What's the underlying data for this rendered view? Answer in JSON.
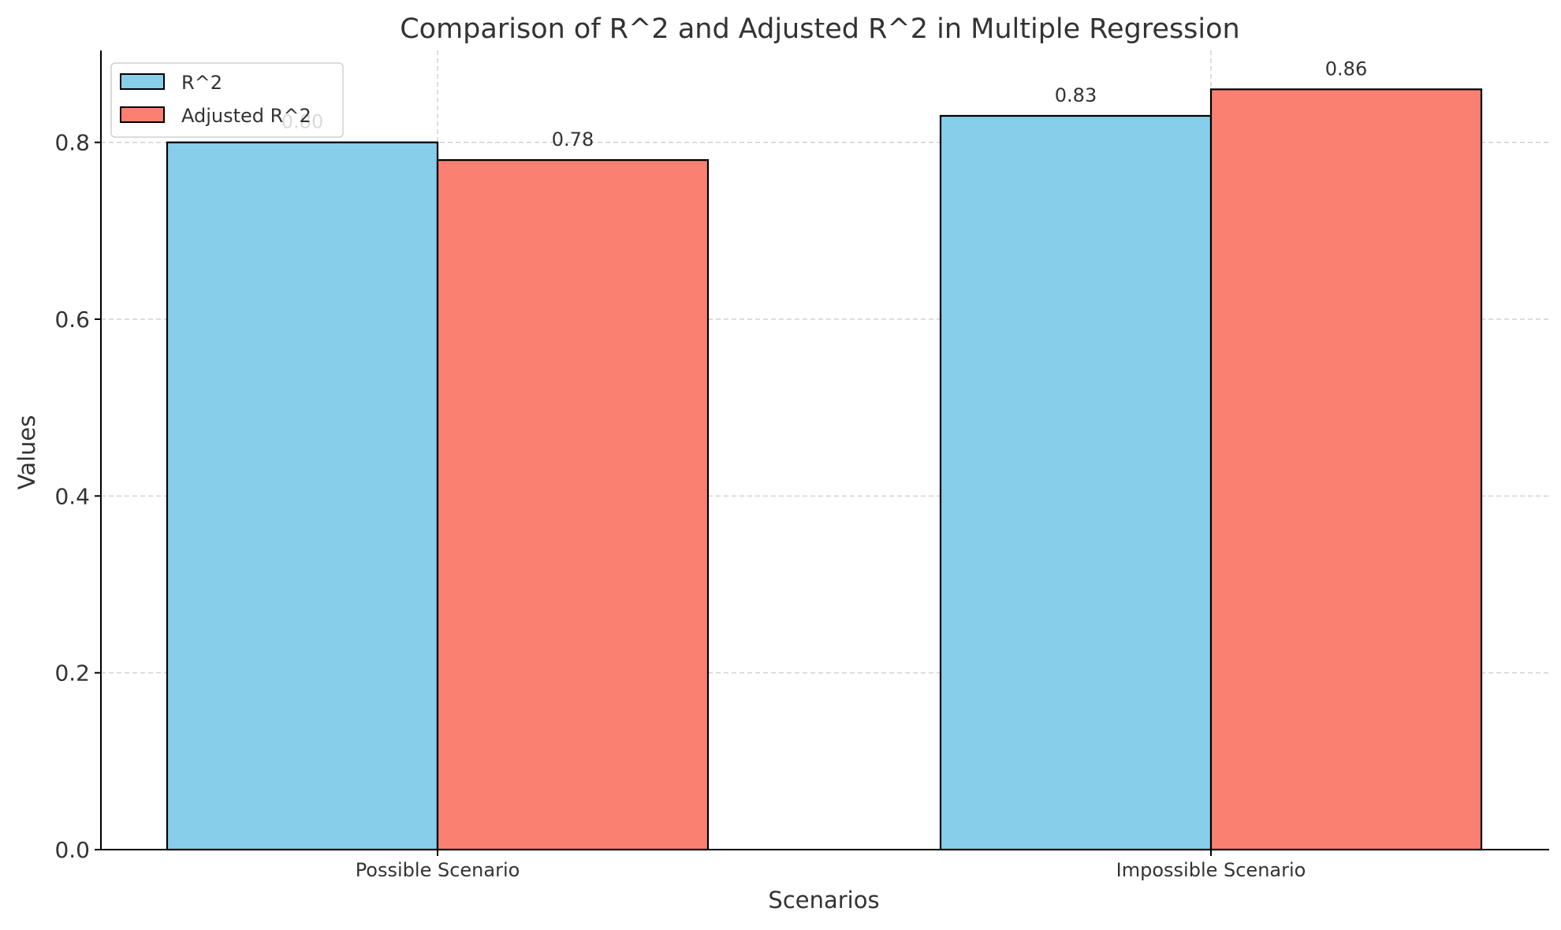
{
  "chart_data": {
    "type": "bar",
    "title": "Comparison of R^2 and Adjusted R^2 in Multiple Regression",
    "xlabel": "Scenarios",
    "ylabel": "Values",
    "categories": [
      "Possible Scenario",
      "Impossible Scenario"
    ],
    "series": [
      {
        "name": "R^2",
        "values": [
          0.8,
          0.83
        ],
        "labels": [
          "0.80",
          "0.83"
        ],
        "color": "#87CEEB"
      },
      {
        "name": "Adjusted R^2",
        "values": [
          0.78,
          0.86
        ],
        "labels": [
          "0.78",
          "0.86"
        ],
        "color": "#FA8072"
      }
    ],
    "ylim": [
      0,
      0.904
    ],
    "yticks": [
      0.0,
      0.2,
      0.4,
      0.6,
      0.8
    ],
    "ytick_labels": [
      "0.0",
      "0.2",
      "0.4",
      "0.6",
      "0.8"
    ],
    "grid": true,
    "grid_style": "dashed",
    "legend_position": "top-left"
  }
}
